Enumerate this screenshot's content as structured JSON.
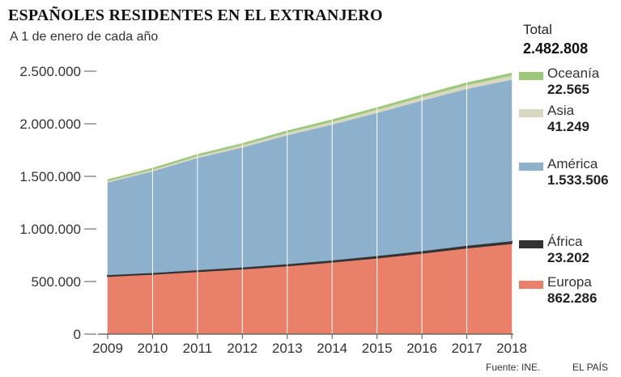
{
  "chart_data": {
    "type": "area",
    "title": "ESPAÑOLES RESIDENTES EN EL EXTRANJERO",
    "subtitle": "A 1 de enero de cada año",
    "x": [
      "2009",
      "2010",
      "2011",
      "2012",
      "2013",
      "2014",
      "2015",
      "2016",
      "2017",
      "2018"
    ],
    "ylim": [
      0,
      2500000
    ],
    "yticks": [
      "0",
      "500.000",
      "1.000.000",
      "1.500.000",
      "2.000.000",
      "2.500.000"
    ],
    "ytick_values": [
      0,
      500000,
      1000000,
      1500000,
      2000000,
      2500000
    ],
    "series": [
      {
        "name": "Europa",
        "color": "#e8806a",
        "label_value": "862.286",
        "values": [
          550000,
          570000,
          595000,
          620000,
          650000,
          685000,
          725000,
          770000,
          820000,
          862286
        ]
      },
      {
        "name": "África",
        "color": "#333333",
        "label_value": "23.202",
        "values": [
          12000,
          13000,
          14000,
          15000,
          16000,
          17000,
          18500,
          20000,
          21500,
          23202
        ]
      },
      {
        "name": "América",
        "color": "#8db0cc",
        "label_value": "1.533.506",
        "values": [
          880000,
          965000,
          1065000,
          1140000,
          1225000,
          1290000,
          1360000,
          1430000,
          1490000,
          1533506
        ]
      },
      {
        "name": "Asia",
        "color": "#d6d8c2",
        "label_value": "41.249",
        "values": [
          15000,
          17000,
          20000,
          23000,
          26000,
          29000,
          32000,
          35000,
          38000,
          41249
        ]
      },
      {
        "name": "Oceanía",
        "color": "#9cc87a",
        "label_value": "22.565",
        "values": [
          13000,
          14000,
          15000,
          16000,
          17000,
          18000,
          19000,
          20500,
          21500,
          22565
        ]
      }
    ],
    "total": {
      "label": "Total",
      "value": "2.482.808"
    },
    "grid": true,
    "legend_placement": "right"
  },
  "footer": {
    "source": "Fuente: INE.",
    "publisher": "EL PAÍS"
  }
}
